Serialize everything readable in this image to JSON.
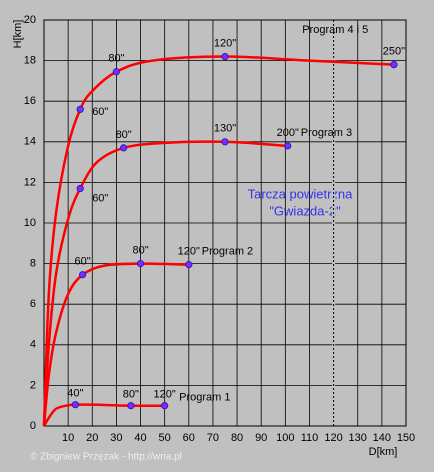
{
  "chart_data": {
    "type": "line",
    "x_label": "D[km]",
    "y_label": "H[km]",
    "xlim": [
      0,
      150
    ],
    "ylim": [
      0,
      20
    ],
    "xticks": [
      10,
      20,
      30,
      40,
      50,
      60,
      70,
      80,
      90,
      100,
      110,
      120,
      130,
      140,
      150
    ],
    "yticks": [
      0,
      2,
      4,
      6,
      8,
      10,
      12,
      14,
      16,
      18,
      20
    ],
    "grid": true,
    "color": "#ff0000",
    "marker_color": "#7030ff",
    "vline": 120,
    "annotation": [
      "Tarcza powietrzna",
      "\"Gwiazda-2\""
    ],
    "copyright": "© Zbigniew Przęzak - http://wria.pl",
    "series": [
      {
        "name": "Program 1",
        "x": [
          0,
          2,
          5,
          10,
          13,
          20,
          36,
          50
        ],
        "values": [
          0,
          0.4,
          0.85,
          1.02,
          1.05,
          1.05,
          1.0,
          1.0
        ],
        "markers": [
          {
            "x": 13,
            "y": 1.05,
            "label": "40\""
          },
          {
            "x": 36,
            "y": 1.0,
            "label": "80\""
          },
          {
            "x": 50,
            "y": 1.0,
            "label": "120\""
          }
        ]
      },
      {
        "name": "Program 2",
        "x": [
          0,
          2,
          5,
          10,
          16,
          25,
          40,
          60
        ],
        "values": [
          0,
          2.5,
          4.6,
          6.5,
          7.45,
          7.9,
          8.0,
          7.95
        ],
        "markers": [
          {
            "x": 16,
            "y": 7.45,
            "label": "60\""
          },
          {
            "x": 40,
            "y": 8.0,
            "label": "80\""
          },
          {
            "x": 60,
            "y": 7.95,
            "label": "120\""
          }
        ]
      },
      {
        "name": "Program 3",
        "x": [
          0,
          2,
          5,
          10,
          15,
          22,
          33,
          50,
          75,
          101
        ],
        "values": [
          0,
          4,
          7.5,
          10.2,
          11.7,
          13.0,
          13.7,
          13.95,
          14.0,
          13.8
        ],
        "markers": [
          {
            "x": 15,
            "y": 11.7,
            "label": "60\""
          },
          {
            "x": 33,
            "y": 13.7,
            "label": "80\""
          },
          {
            "x": 75,
            "y": 14.0,
            "label": "130\""
          },
          {
            "x": 101,
            "y": 13.8,
            "label": "200\""
          }
        ]
      },
      {
        "name": "Program 4 i 5",
        "x": [
          0,
          2,
          5,
          10,
          15,
          20,
          30,
          45,
          75,
          110,
          145
        ],
        "values": [
          0,
          6.5,
          10.5,
          13.8,
          15.6,
          16.5,
          17.45,
          18.0,
          18.2,
          18.0,
          17.8
        ],
        "markers": [
          {
            "x": 15,
            "y": 15.6,
            "label": "60\""
          },
          {
            "x": 30,
            "y": 17.45,
            "label": "80\""
          },
          {
            "x": 75,
            "y": 18.2,
            "label": "120\""
          },
          {
            "x": 145,
            "y": 17.8,
            "label": "250\""
          }
        ]
      }
    ]
  }
}
